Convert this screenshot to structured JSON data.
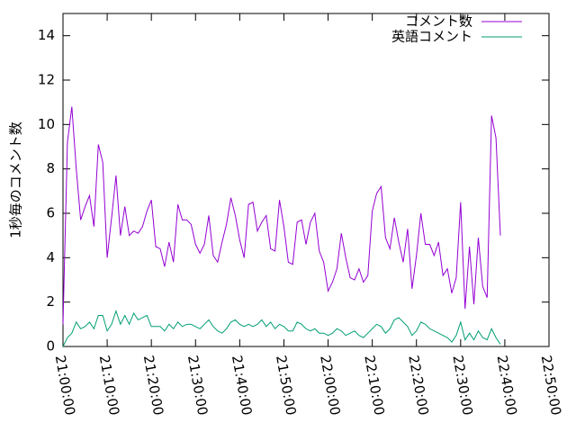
{
  "chart_data": {
    "type": "line",
    "y_label": "1秒毎のコメント数",
    "x": [
      "21:00:00",
      "21:01:00",
      "21:02:00",
      "21:03:00",
      "21:04:00",
      "21:05:00",
      "21:06:00",
      "21:07:00",
      "21:08:00",
      "21:09:00",
      "21:10:00",
      "21:11:00",
      "21:12:00",
      "21:13:00",
      "21:14:00",
      "21:15:00",
      "21:16:00",
      "21:17:00",
      "21:18:00",
      "21:19:00",
      "21:20:00",
      "21:21:00",
      "21:22:00",
      "21:23:00",
      "21:24:00",
      "21:25:00",
      "21:26:00",
      "21:27:00",
      "21:28:00",
      "21:29:00",
      "21:30:00",
      "21:31:00",
      "21:32:00",
      "21:33:00",
      "21:34:00",
      "21:35:00",
      "21:36:00",
      "21:37:00",
      "21:38:00",
      "21:39:00",
      "21:40:00",
      "21:41:00",
      "21:42:00",
      "21:43:00",
      "21:44:00",
      "21:45:00",
      "21:46:00",
      "21:47:00",
      "21:48:00",
      "21:49:00",
      "21:50:00",
      "21:51:00",
      "21:52:00",
      "21:53:00",
      "21:54:00",
      "21:55:00",
      "21:56:00",
      "21:57:00",
      "21:58:00",
      "21:59:00",
      "22:00:00",
      "22:01:00",
      "22:02:00",
      "22:03:00",
      "22:04:00",
      "22:05:00",
      "22:06:00",
      "22:07:00",
      "22:08:00",
      "22:09:00",
      "22:10:00",
      "22:11:00",
      "22:12:00",
      "22:13:00",
      "22:14:00",
      "22:15:00",
      "22:16:00",
      "22:17:00",
      "22:18:00",
      "22:19:00",
      "22:20:00",
      "22:21:00",
      "22:22:00",
      "22:23:00",
      "22:24:00",
      "22:25:00",
      "22:26:00",
      "22:27:00",
      "22:28:00",
      "22:29:00",
      "22:30:00",
      "22:31:00",
      "22:32:00",
      "22:33:00",
      "22:34:00",
      "22:35:00",
      "22:36:00",
      "22:37:00",
      "22:38:00",
      "22:39:00"
    ],
    "series": [
      {
        "name": "コメント数",
        "color": "#9400d3",
        "values": [
          1.0,
          9.2,
          10.8,
          8.0,
          5.7,
          6.3,
          6.8,
          5.4,
          9.1,
          8.3,
          4.0,
          5.8,
          7.7,
          5.0,
          6.3,
          5.0,
          5.2,
          5.1,
          5.4,
          6.1,
          6.6,
          4.5,
          4.4,
          3.6,
          4.7,
          3.8,
          6.4,
          5.7,
          5.7,
          5.5,
          4.6,
          4.2,
          4.6,
          5.9,
          4.1,
          3.8,
          4.7,
          5.5,
          6.7,
          5.9,
          4.8,
          4.0,
          6.4,
          6.5,
          5.2,
          5.6,
          5.9,
          4.4,
          4.3,
          6.6,
          5.4,
          3.8,
          3.7,
          5.6,
          5.7,
          4.6,
          5.6,
          6.0,
          4.3,
          3.8,
          2.5,
          2.9,
          3.5,
          5.1,
          4.0,
          3.1,
          3.0,
          3.5,
          2.9,
          3.2,
          6.1,
          6.9,
          7.2,
          4.9,
          4.4,
          5.8,
          4.7,
          3.8,
          5.3,
          2.6,
          4.1,
          6.0,
          4.6,
          4.6,
          4.1,
          4.7,
          3.2,
          3.5,
          2.4,
          3.1,
          6.5,
          1.7,
          4.5,
          1.9,
          4.9,
          2.7,
          2.2,
          10.4,
          9.4,
          5.0
        ]
      },
      {
        "name": "英語コメント",
        "color": "#009e73",
        "values": [
          0.0,
          0.4,
          0.6,
          1.1,
          0.8,
          0.9,
          1.1,
          0.8,
          1.4,
          1.4,
          0.7,
          1.0,
          1.6,
          1.0,
          1.4,
          1.0,
          1.5,
          1.2,
          1.3,
          1.4,
          0.9,
          0.9,
          0.9,
          0.7,
          1.0,
          0.8,
          1.1,
          0.9,
          1.0,
          1.0,
          0.9,
          0.8,
          1.0,
          1.2,
          0.9,
          0.7,
          0.6,
          0.8,
          1.1,
          1.2,
          1.0,
          0.9,
          1.0,
          0.9,
          1.0,
          1.2,
          0.9,
          1.1,
          0.8,
          1.0,
          0.9,
          0.7,
          0.7,
          1.1,
          1.0,
          0.8,
          0.7,
          0.8,
          0.6,
          0.6,
          0.5,
          0.6,
          0.8,
          0.7,
          0.5,
          0.6,
          0.7,
          0.5,
          0.4,
          0.6,
          0.8,
          1.0,
          0.9,
          0.6,
          0.8,
          1.2,
          1.3,
          1.1,
          0.9,
          0.5,
          0.7,
          1.1,
          1.0,
          0.8,
          0.7,
          0.6,
          0.5,
          0.4,
          0.2,
          0.5,
          1.1,
          0.3,
          0.6,
          0.3,
          0.7,
          0.4,
          0.3,
          0.8,
          0.4,
          0.1
        ]
      }
    ],
    "xlim": [
      "21:00:00",
      "22:50:00"
    ],
    "xticks": [
      "21:00:00",
      "21:10:00",
      "21:20:00",
      "21:30:00",
      "21:40:00",
      "21:50:00",
      "22:00:00",
      "22:10:00",
      "22:20:00",
      "22:30:00",
      "22:40:00",
      "22:50:00"
    ],
    "ylim": [
      0,
      15
    ],
    "yticks": [
      0,
      2,
      4,
      6,
      8,
      10,
      12,
      14
    ],
    "legend": "top-right"
  }
}
